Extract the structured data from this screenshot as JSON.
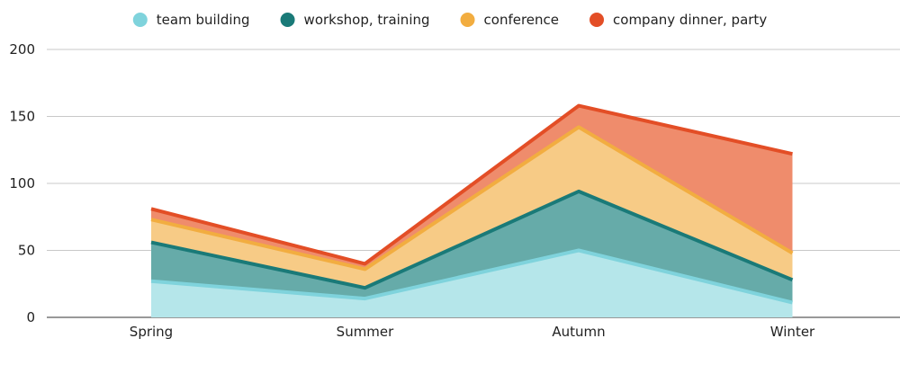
{
  "chart_data": {
    "type": "area",
    "stacked": true,
    "categories": [
      "Spring",
      "Summer",
      "Autumn",
      "Winter"
    ],
    "series": [
      {
        "name": "team building",
        "values": [
          27,
          14,
          50,
          11
        ],
        "color": "#7fd3dc",
        "fill": "#b5e6ea"
      },
      {
        "name": "workshop, training",
        "values": [
          29,
          8,
          44,
          17
        ],
        "color": "#1a7a78",
        "fill": "#66aba9"
      },
      {
        "name": "conference",
        "values": [
          17,
          14,
          48,
          20
        ],
        "color": "#f2ad40",
        "fill": "#f7cb86"
      },
      {
        "name": "company dinner, party",
        "values": [
          8,
          4,
          16,
          74
        ],
        "color": "#e34e26",
        "fill": "#ef8c6c"
      }
    ],
    "ylim": [
      0,
      200
    ],
    "yticks": [
      "0",
      "50",
      "100",
      "150",
      "200"
    ],
    "grid": true,
    "legend_position": "top"
  }
}
